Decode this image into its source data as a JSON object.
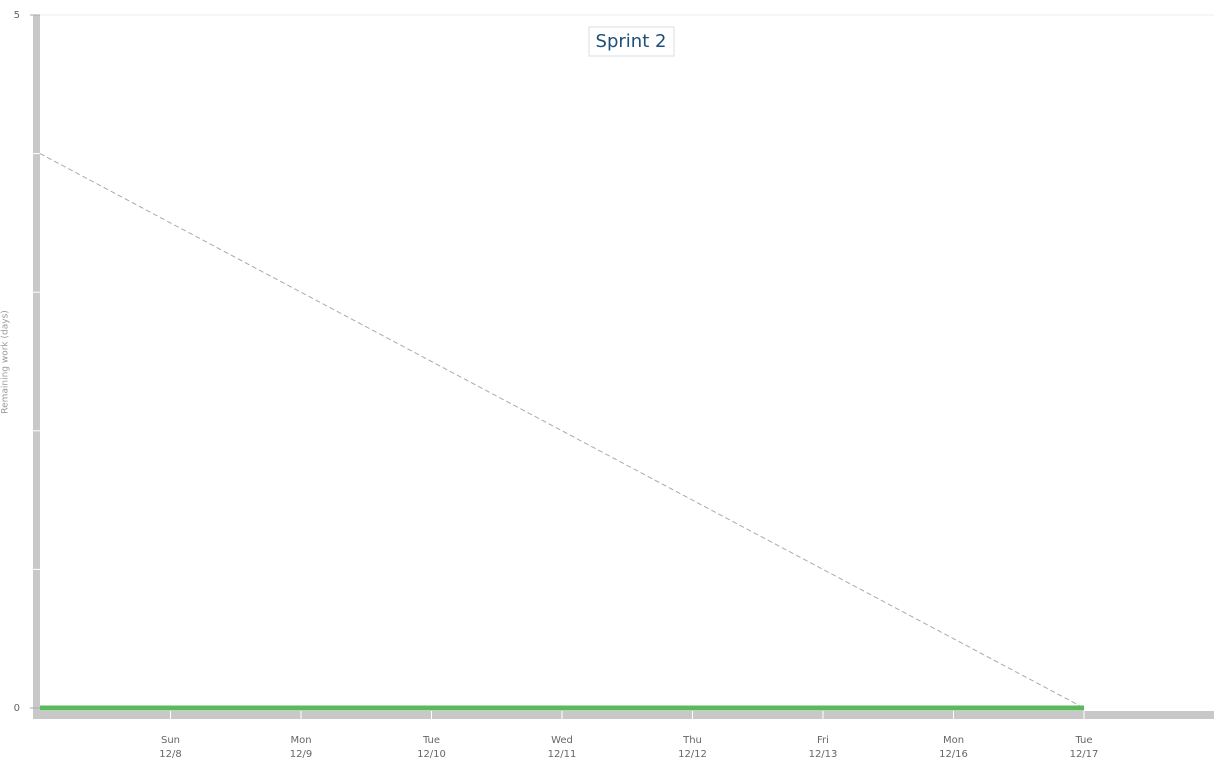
{
  "chart_data": {
    "type": "line",
    "title": "Sprint 2",
    "y_label": "Remaining work (days)",
    "categories": [
      null,
      "12/8",
      "12/9",
      "12/10",
      "12/11",
      "12/12",
      "12/13",
      "12/16",
      "12/17",
      null
    ],
    "category_weekdays": [
      null,
      "Sun",
      "Mon",
      "Tue",
      "Wed",
      "Thu",
      "Fri",
      "Mon",
      "Tue",
      null
    ],
    "series": [
      {
        "color": "#aaaaaa",
        "dashed": true,
        "values": [
          4,
          3.5,
          3,
          2.5,
          2,
          1.5,
          1,
          0.5,
          0,
          null
        ]
      },
      {
        "color": "#5cb85c",
        "dashed": false,
        "values": [
          0,
          0,
          0,
          0,
          0,
          0,
          0,
          0,
          0,
          null
        ]
      }
    ],
    "ylim": [
      0,
      5
    ],
    "yticks": [
      0,
      5
    ],
    "yticks_minor": [
      1,
      2,
      3,
      4
    ]
  }
}
